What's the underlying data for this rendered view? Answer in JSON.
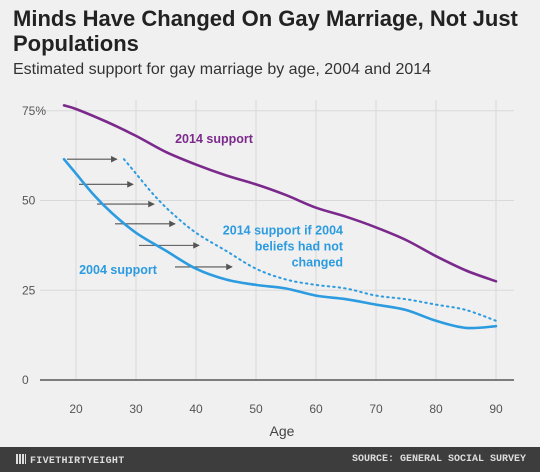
{
  "header": {
    "title": "Minds Have Changed On Gay Marriage, Not Just Populations",
    "subtitle": "Estimated support for gay marriage by age, 2004 and 2014"
  },
  "footer": {
    "brand": "FIVETHIRTYEIGHT",
    "source": "SOURCE: GENERAL SOCIAL SURVEY"
  },
  "colors": {
    "s2014": "#7b2a8c",
    "s2004": "#2c9be0",
    "background": "#f0f0f0",
    "grid": "#d9d9d9",
    "arrow": "#555555"
  },
  "chart_data": {
    "type": "line",
    "xlabel": "Age",
    "ylabel": "",
    "xlim": [
      15,
      93
    ],
    "ylim": [
      0,
      78
    ],
    "x_ticks": [
      20,
      30,
      40,
      50,
      60,
      70,
      80,
      90
    ],
    "y_ticks": [
      0,
      25,
      50,
      75
    ],
    "y_tick_labels": [
      "0",
      "25",
      "50",
      "75%"
    ],
    "grid": true,
    "series": [
      {
        "name": "2014 support",
        "style": "solid",
        "color": "#7b2a8c",
        "points": [
          [
            18,
            76.5
          ],
          [
            20,
            75.5
          ],
          [
            25,
            72
          ],
          [
            30,
            68
          ],
          [
            35,
            63.5
          ],
          [
            40,
            60
          ],
          [
            45,
            57
          ],
          [
            50,
            54.5
          ],
          [
            55,
            51.5
          ],
          [
            60,
            48
          ],
          [
            65,
            45.5
          ],
          [
            70,
            42.5
          ],
          [
            75,
            39
          ],
          [
            80,
            34.5
          ],
          [
            85,
            30.5
          ],
          [
            90,
            27.5
          ]
        ]
      },
      {
        "name": "2004 support",
        "style": "solid",
        "color": "#2c9be0",
        "points": [
          [
            18,
            61.5
          ],
          [
            20,
            57.5
          ],
          [
            23,
            51.5
          ],
          [
            26,
            46.5
          ],
          [
            30,
            41
          ],
          [
            35,
            36
          ],
          [
            40,
            31
          ],
          [
            45,
            28
          ],
          [
            50,
            26.5
          ],
          [
            55,
            25.5
          ],
          [
            60,
            23.5
          ],
          [
            65,
            22.5
          ],
          [
            70,
            21
          ],
          [
            75,
            19.5
          ],
          [
            80,
            16.5
          ],
          [
            85,
            14.5
          ],
          [
            90,
            15
          ]
        ]
      },
      {
        "name": "2014 support if 2004 beliefs had not changed",
        "style": "dotted",
        "color": "#2c9be0",
        "points": [
          [
            28,
            61.5
          ],
          [
            30,
            57.5
          ],
          [
            33,
            51.5
          ],
          [
            36,
            46.5
          ],
          [
            40,
            41
          ],
          [
            45,
            36
          ],
          [
            50,
            31
          ],
          [
            55,
            28
          ],
          [
            60,
            26.5
          ],
          [
            65,
            25.5
          ],
          [
            70,
            23.5
          ],
          [
            75,
            22.5
          ],
          [
            80,
            21
          ],
          [
            85,
            19.5
          ],
          [
            90,
            16.5
          ]
        ]
      }
    ],
    "annotations": [
      {
        "id": "2014",
        "lines": [
          "2014 support"
        ],
        "x": 43,
        "y": 66,
        "anchor": "middle",
        "color": "#7b2a8c"
      },
      {
        "id": "if2004",
        "lines": [
          "2014 support if 2004",
          "beliefs had not",
          "changed"
        ],
        "x": 64.5,
        "y": 40.5,
        "anchor": "end",
        "color": "#2c9be0"
      },
      {
        "id": "2004",
        "lines": [
          "2004 support"
        ],
        "x": 27,
        "y": 29.5,
        "anchor": "middle",
        "color": "#2c9be0"
      }
    ],
    "arrows": [
      {
        "from": [
          18.5,
          61.5
        ],
        "to": [
          26.8,
          61.5
        ]
      },
      {
        "from": [
          20.5,
          54.5
        ],
        "to": [
          29.5,
          54.5
        ]
      },
      {
        "from": [
          23.5,
          49
        ],
        "to": [
          33,
          49
        ]
      },
      {
        "from": [
          26.5,
          43.5
        ],
        "to": [
          36.5,
          43.5
        ]
      },
      {
        "from": [
          30.5,
          37.5
        ],
        "to": [
          40.5,
          37.5
        ]
      },
      {
        "from": [
          36.5,
          31.5
        ],
        "to": [
          46,
          31.5
        ]
      }
    ]
  }
}
